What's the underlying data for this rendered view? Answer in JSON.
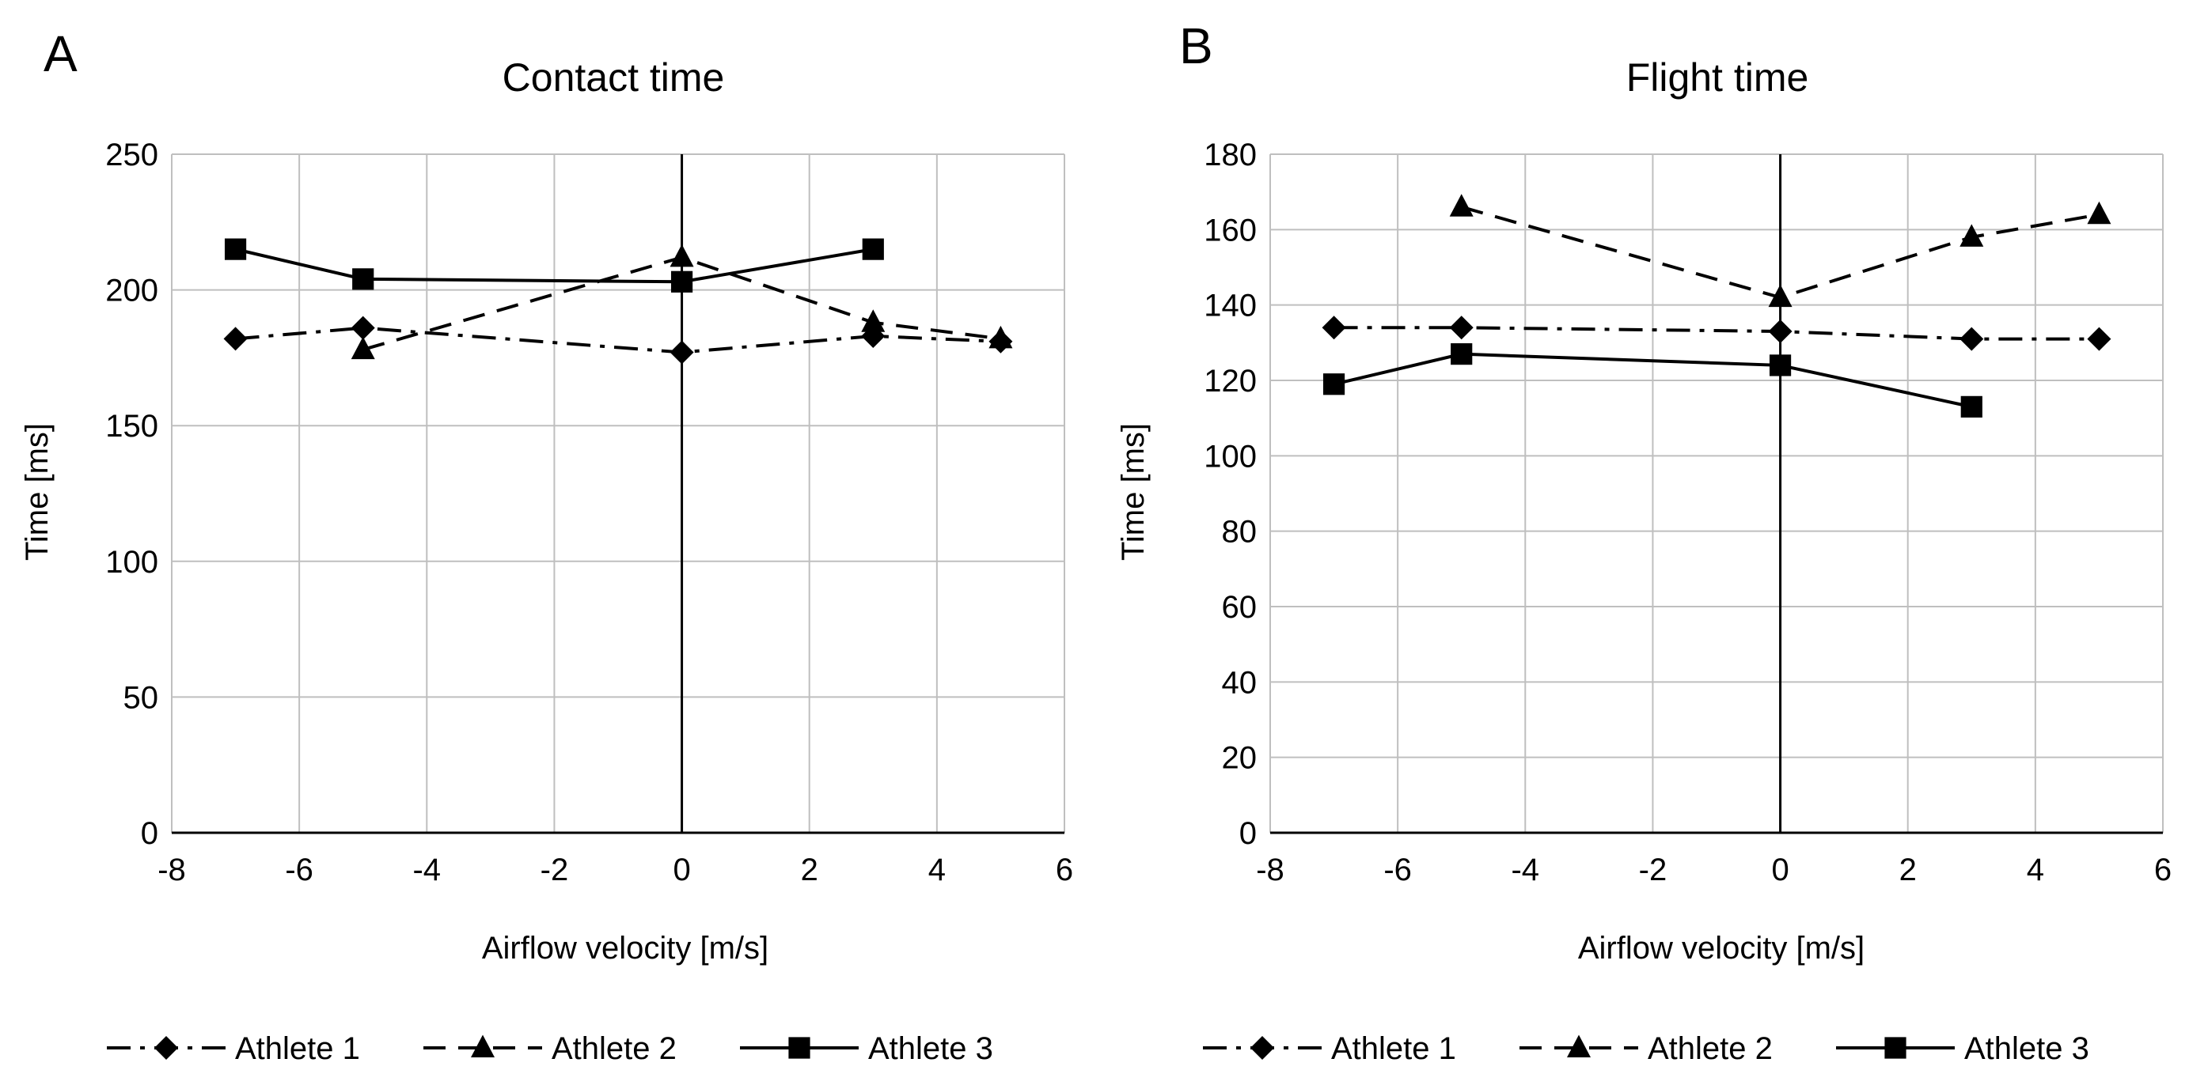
{
  "chart_data": [
    {
      "panel_label": "A",
      "type": "line",
      "title": "Contact time",
      "xlabel": "Airflow velocity [m/s]",
      "ylabel": "Time [ms]",
      "xlim": [
        -8,
        6
      ],
      "ylim": [
        0,
        250
      ],
      "xticks": [
        -8,
        -6,
        -4,
        -2,
        0,
        2,
        4,
        6
      ],
      "yticks": [
        0,
        50,
        100,
        150,
        200,
        250
      ],
      "grid": true,
      "legend_position": "bottom",
      "series": [
        {
          "name": "Athlete 1",
          "marker": "diamond",
          "line_style": "dash-dot",
          "x": [
            -7,
            -5,
            0,
            3,
            5
          ],
          "y": [
            182,
            186,
            177,
            183,
            181
          ]
        },
        {
          "name": "Athlete 2",
          "marker": "triangle",
          "line_style": "dashed",
          "x": [
            -5,
            0,
            3,
            5
          ],
          "y": [
            178,
            212,
            188,
            182
          ]
        },
        {
          "name": "Athlete 3",
          "marker": "square",
          "line_style": "solid",
          "x": [
            -7,
            -5,
            0,
            3
          ],
          "y": [
            215,
            204,
            203,
            215
          ]
        }
      ]
    },
    {
      "panel_label": "B",
      "type": "line",
      "title": "Flight time",
      "xlabel": "Airflow velocity [m/s]",
      "ylabel": "Time [ms]",
      "xlim": [
        -8,
        6
      ],
      "ylim": [
        0,
        180
      ],
      "xticks": [
        -8,
        -6,
        -4,
        -2,
        0,
        2,
        4,
        6
      ],
      "yticks": [
        0,
        20,
        40,
        60,
        80,
        100,
        120,
        140,
        160,
        180
      ],
      "grid": true,
      "legend_position": "bottom",
      "series": [
        {
          "name": "Athlete 1",
          "marker": "diamond",
          "line_style": "dash-dot",
          "x": [
            -7,
            -5,
            0,
            3,
            5
          ],
          "y": [
            134,
            134,
            133,
            131,
            131
          ]
        },
        {
          "name": "Athlete 2",
          "marker": "triangle",
          "line_style": "dashed",
          "x": [
            -5,
            0,
            3,
            5
          ],
          "y": [
            166,
            142,
            158,
            164
          ]
        },
        {
          "name": "Athlete 3",
          "marker": "square",
          "line_style": "solid",
          "x": [
            -7,
            -5,
            0,
            3
          ],
          "y": [
            119,
            127,
            124,
            113
          ]
        }
      ]
    }
  ]
}
